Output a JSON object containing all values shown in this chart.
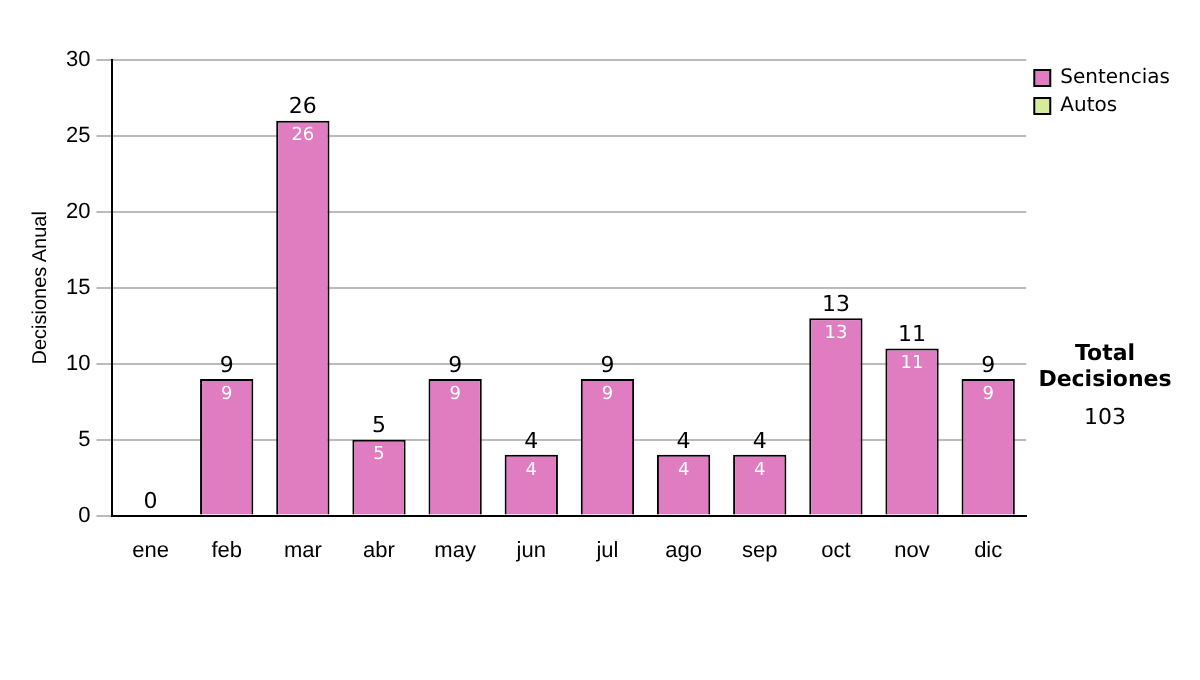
{
  "chart_data": {
    "type": "bar",
    "stacked": true,
    "ylabel": "Decisiones Anual",
    "categories": [
      "ene",
      "feb",
      "mar",
      "abr",
      "may",
      "jun",
      "jul",
      "ago",
      "sep",
      "oct",
      "nov",
      "dic"
    ],
    "series": [
      {
        "name": "Sentencias",
        "color": "#e07cc0",
        "values": [
          0,
          9,
          26,
          5,
          9,
          4,
          9,
          4,
          4,
          13,
          11,
          9
        ],
        "value_labels": [
          null,
          "9",
          "26",
          "5",
          "9",
          "4",
          "9",
          "4",
          "4",
          "13",
          "11",
          "9"
        ]
      },
      {
        "name": "Autos",
        "color": "#d4ec9c",
        "values": [
          0,
          0,
          0,
          0,
          0,
          0,
          0,
          0,
          0,
          0,
          0,
          0
        ]
      }
    ],
    "totals": [
      "0",
      "9",
      "26",
      "5",
      "9",
      "4",
      "9",
      "4",
      "4",
      "13",
      "11",
      "9"
    ],
    "ylim": [
      0,
      30
    ],
    "yticks": [
      0,
      5,
      10,
      15,
      20,
      25,
      30
    ],
    "grid": "y",
    "legend": "right",
    "annotations": [
      "Total Decisiones",
      "103"
    ]
  }
}
